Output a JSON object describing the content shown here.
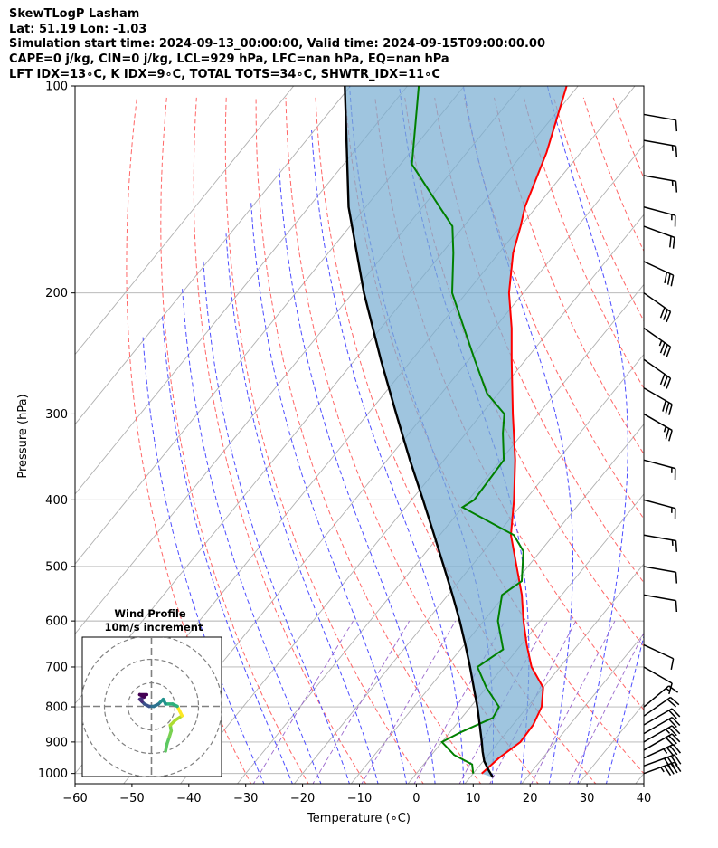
{
  "header": {
    "line1": "SkewTLogP Lasham",
    "line2": "Lat: 51.19   Lon: -1.03",
    "line3": "Simulation start time: 2024-09-13_00:00:00, Valid time: 2024-09-15T09:00:00.00",
    "line4": "CAPE=0 j/kg, CIN=0 j/kg, LCL=929 hPa, LFC=nan hPa, EQ=nan hPa",
    "line5": "LFT IDX=13∘C, K IDX=9∘C, TOTAL TOTS=34∘C, SHWTR_IDX=11∘C"
  },
  "chart_data": {
    "type": "line",
    "title": "SkewTLogP Lasham",
    "xlabel": "Temperature (∘C)",
    "ylabel": "Pressure (hPa)",
    "xlim": [
      -60,
      40
    ],
    "ylim": [
      1035,
      100
    ],
    "x_ticks": [
      -60,
      -50,
      -40,
      -30,
      -20,
      -10,
      0,
      10,
      20,
      30,
      40
    ],
    "x_tick_labels": [
      "−60",
      "−50",
      "−40",
      "−30",
      "−20",
      "−10",
      "0",
      "10",
      "20",
      "30",
      "40"
    ],
    "y_ticks": [
      100,
      200,
      300,
      400,
      500,
      600,
      700,
      800,
      900,
      1000
    ],
    "y_tick_labels": [
      "100",
      "200",
      "300",
      "400",
      "500",
      "600",
      "700",
      "800",
      "900",
      "1000"
    ],
    "grid": true,
    "series": [
      {
        "name": "Temperature",
        "color": "#ff0000",
        "points": [
          [
            1000,
            11.5
          ],
          [
            950,
            12.3
          ],
          [
            900,
            13.8
          ],
          [
            850,
            13.6
          ],
          [
            800,
            12.5
          ],
          [
            750,
            10.0
          ],
          [
            700,
            5.0
          ],
          [
            650,
            1.0
          ],
          [
            600,
            -3.0
          ],
          [
            550,
            -7.0
          ],
          [
            500,
            -12.0
          ],
          [
            450,
            -17.5
          ],
          [
            400,
            -22.0
          ],
          [
            350,
            -27.5
          ],
          [
            300,
            -34.5
          ],
          [
            250,
            -42.5
          ],
          [
            225,
            -47.0
          ],
          [
            200,
            -52.5
          ],
          [
            175,
            -57.5
          ],
          [
            160,
            -60.0
          ],
          [
            150,
            -62.0
          ],
          [
            125,
            -66.0
          ],
          [
            100,
            -72.0
          ]
        ]
      },
      {
        "name": "Dewpoint",
        "color": "#008000",
        "points": [
          [
            1000,
            10.0
          ],
          [
            970,
            8.5
          ],
          [
            940,
            4.0
          ],
          [
            900,
            0.0
          ],
          [
            870,
            2.0
          ],
          [
            830,
            5.5
          ],
          [
            800,
            5.0
          ],
          [
            750,
            0.0
          ],
          [
            700,
            -4.5
          ],
          [
            660,
            -2.5
          ],
          [
            600,
            -7.5
          ],
          [
            550,
            -10.5
          ],
          [
            525,
            -9.0
          ],
          [
            475,
            -13.0
          ],
          [
            450,
            -17.0
          ],
          [
            410,
            -30.0
          ],
          [
            400,
            -29.0
          ],
          [
            350,
            -29.5
          ],
          [
            320,
            -33.5
          ],
          [
            300,
            -36.0
          ],
          [
            280,
            -42.0
          ],
          [
            250,
            -49.0
          ],
          [
            200,
            -62.5
          ],
          [
            175,
            -68.0
          ],
          [
            160,
            -72.0
          ],
          [
            150,
            -77.0
          ],
          [
            130,
            -88.0
          ],
          [
            100,
            -98.0
          ]
        ]
      },
      {
        "name": "Parcel",
        "color": "#000000",
        "points": [
          [
            1013,
            14.0
          ],
          [
            990,
            12.3
          ],
          [
            960,
            10.2
          ],
          [
            929,
            8.5
          ],
          [
            900,
            7.0
          ],
          [
            850,
            4.2
          ],
          [
            800,
            1.2
          ],
          [
            750,
            -2.2
          ],
          [
            700,
            -5.8
          ],
          [
            650,
            -9.8
          ],
          [
            600,
            -14.2
          ],
          [
            550,
            -19.2
          ],
          [
            500,
            -24.8
          ],
          [
            450,
            -31.0
          ],
          [
            400,
            -38.0
          ],
          [
            350,
            -46.0
          ],
          [
            300,
            -55.0
          ],
          [
            250,
            -65.5
          ],
          [
            200,
            -78.0
          ],
          [
            150,
            -93.0
          ],
          [
            100,
            -111.0
          ]
        ]
      }
    ],
    "barbs": [
      {
        "p": 1000,
        "speed": 45,
        "dir": 250
      },
      {
        "p": 975,
        "speed": 40,
        "dir": 250
      },
      {
        "p": 950,
        "speed": 35,
        "dir": 245
      },
      {
        "p": 925,
        "speed": 30,
        "dir": 240
      },
      {
        "p": 900,
        "speed": 25,
        "dir": 240
      },
      {
        "p": 875,
        "speed": 22,
        "dir": 240
      },
      {
        "p": 850,
        "speed": 20,
        "dir": 240
      },
      {
        "p": 825,
        "speed": 18,
        "dir": 235
      },
      {
        "p": 800,
        "speed": 15,
        "dir": 230
      },
      {
        "p": 700,
        "speed": 10,
        "dir": 300
      },
      {
        "p": 650,
        "speed": 10,
        "dir": 295
      },
      {
        "p": 550,
        "speed": 10,
        "dir": 280
      },
      {
        "p": 500,
        "speed": 10,
        "dir": 280
      },
      {
        "p": 450,
        "speed": 15,
        "dir": 280
      },
      {
        "p": 400,
        "speed": 15,
        "dir": 285
      },
      {
        "p": 350,
        "speed": 15,
        "dir": 285
      },
      {
        "p": 300,
        "speed": 25,
        "dir": 300
      },
      {
        "p": 275,
        "speed": 30,
        "dir": 300
      },
      {
        "p": 250,
        "speed": 30,
        "dir": 305
      },
      {
        "p": 225,
        "speed": 35,
        "dir": 305
      },
      {
        "p": 200,
        "speed": 30,
        "dir": 305
      },
      {
        "p": 180,
        "speed": 30,
        "dir": 295
      },
      {
        "p": 160,
        "speed": 20,
        "dir": 290
      },
      {
        "p": 150,
        "speed": 15,
        "dir": 285
      },
      {
        "p": 135,
        "speed": 15,
        "dir": 280
      },
      {
        "p": 120,
        "speed": 15,
        "dir": 280
      },
      {
        "p": 110,
        "speed": 10,
        "dir": 280
      }
    ],
    "hodograph": {
      "title_line1": "Wind Profile",
      "title_line2": "10m/s increment",
      "points": [
        [
          3.0,
          -9.5
        ],
        [
          3.3,
          -8.0
        ],
        [
          3.8,
          -6.5
        ],
        [
          4.2,
          -5.2
        ],
        [
          4.0,
          -4.0
        ],
        [
          5.0,
          -3.0
        ],
        [
          6.5,
          -2.0
        ],
        [
          6.0,
          -1.0
        ],
        [
          5.5,
          0.0
        ],
        [
          4.5,
          0.5
        ],
        [
          3.0,
          0.5
        ],
        [
          2.5,
          1.5
        ],
        [
          1.5,
          0.5
        ],
        [
          0.5,
          0.0
        ],
        [
          -0.5,
          0.0
        ],
        [
          -1.5,
          0.5
        ],
        [
          -2.0,
          1.0
        ],
        [
          -2.5,
          1.5
        ],
        [
          -1.5,
          2.0
        ],
        [
          -2.5,
          2.5
        ],
        [
          -1.0,
          2.5
        ]
      ]
    }
  }
}
